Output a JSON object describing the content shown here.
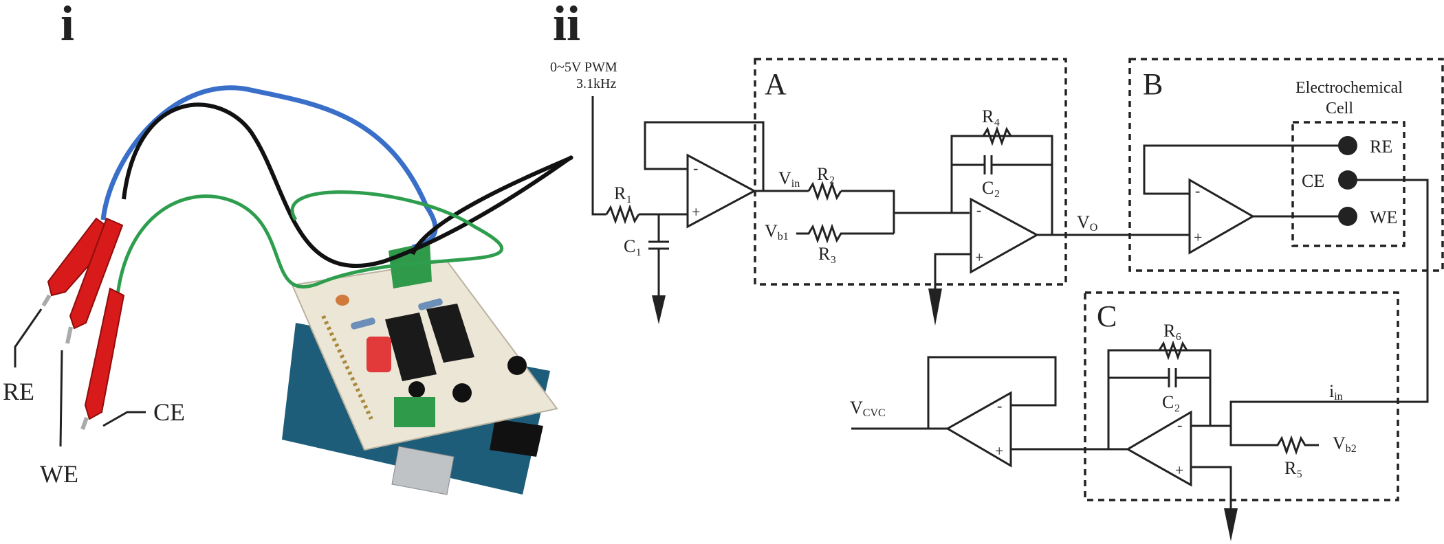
{
  "panels": {
    "photo": "i",
    "schematic": "ii"
  },
  "photo_labels": {
    "re": "RE",
    "we": "WE",
    "ce": "CE"
  },
  "schematic": {
    "input_signal_line1": "0~5V PWM",
    "input_signal_line2": "3.1kHz",
    "blocks": {
      "a": "A",
      "b": "B",
      "c": "C"
    },
    "cell_title_line1": "Electrochemical",
    "cell_title_line2": "Cell",
    "electrodes": {
      "re": "RE",
      "ce": "CE",
      "we": "WE"
    },
    "components": {
      "r1": "R₁",
      "c1": "C₁",
      "r2": "R₂",
      "r3": "R₃",
      "r4": "R₄",
      "c2_top": "C₂",
      "r5": "R₅",
      "r6": "R₆",
      "c2_bottom": "C₂"
    },
    "signals": {
      "vin_main": "V",
      "vin_sub": "in",
      "vb1_main": "V",
      "vb1_sub": "b1",
      "vo_main": "V",
      "vo_sub": "O",
      "vcvc_main": "V",
      "vcvc_sub": "CVC",
      "iin_main": "i",
      "iin_sub": "in",
      "vb2_main": "V",
      "vb2_sub": "b2"
    }
  },
  "colors": {
    "ink": "#222222",
    "clip_red": "#d81a1a",
    "wire_blue": "#3a6fc9",
    "wire_green": "#2e9e4e",
    "pcb": "#ece6d6",
    "terminal_green": "#2f9a4a"
  }
}
